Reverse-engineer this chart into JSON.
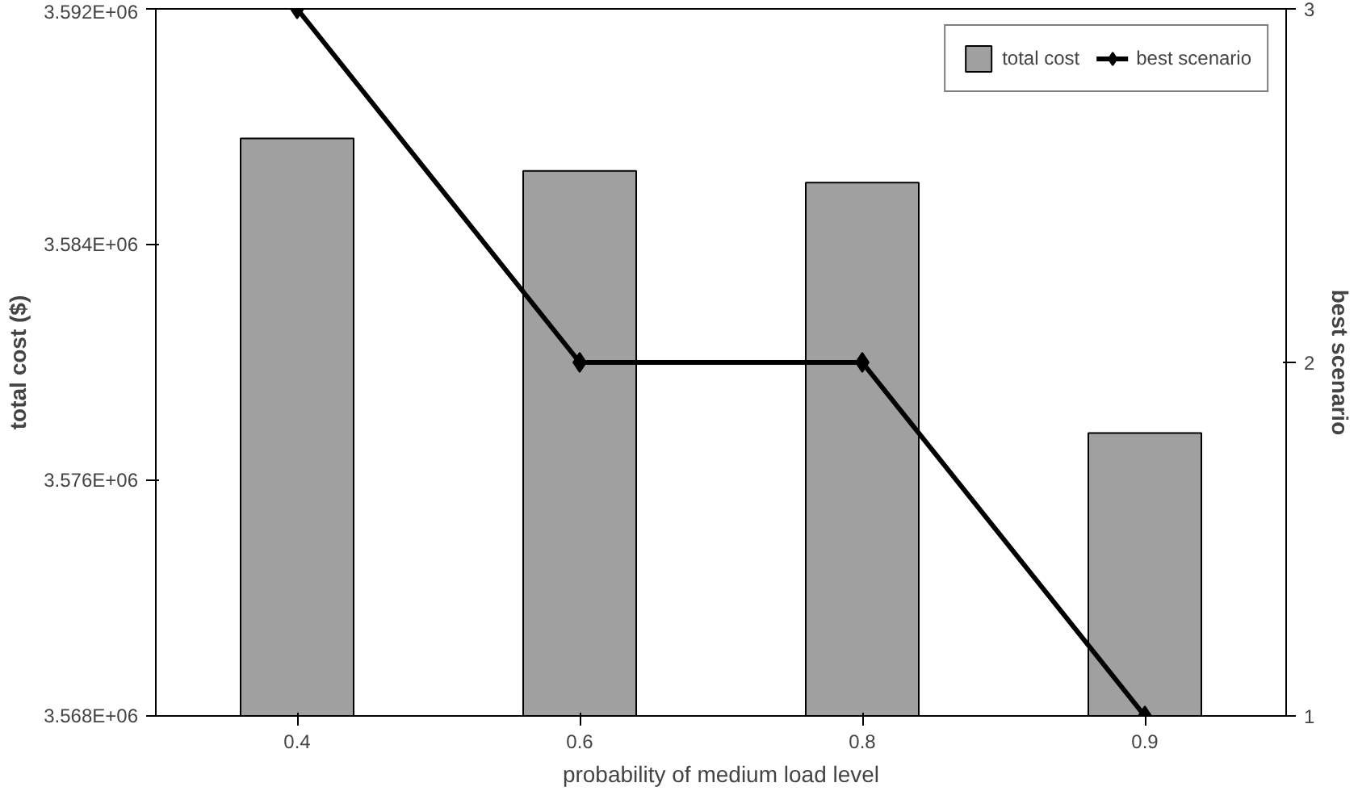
{
  "chart_data": {
    "type": "bar",
    "xlabel": "probability of medium load level",
    "ylabel": "total cost ($)",
    "y2label": "best scenario",
    "categories": [
      "0.4",
      "0.6",
      "0.8",
      "0.9"
    ],
    "series": [
      {
        "name": "total cost",
        "color": "#a0a0a0",
        "values": [
          3587600,
          3586500,
          3586100,
          3577600
        ]
      },
      {
        "name": "best scenario",
        "type": "line",
        "axis": "y2",
        "color": "#000000",
        "marker": "diamond",
        "values": [
          3,
          2,
          2,
          1
        ]
      }
    ],
    "ylim": [
      3568000,
      3592000
    ],
    "yticks": [
      {
        "value": 3568000,
        "label": "3.568E+06"
      },
      {
        "value": 3576000,
        "label": "3.576E+06"
      },
      {
        "value": 3584000,
        "label": "3.584E+06"
      },
      {
        "value": 3592000,
        "label": "3.592E+06"
      }
    ],
    "y2lim": [
      1,
      3
    ],
    "y2ticks": [
      1,
      2,
      3
    ],
    "grid": false,
    "legend": "top right"
  }
}
